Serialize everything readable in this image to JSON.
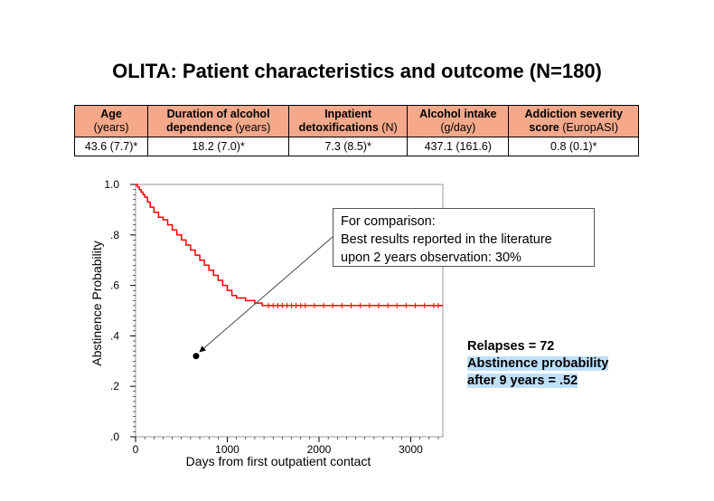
{
  "title": "OLITA: Patient characteristics and outcome (N=180)",
  "table": {
    "headers": [
      {
        "line1": "Age",
        "line2": "(years)",
        "line2_bold": ""
      },
      {
        "line1": "Duration of alcohol",
        "line2": " (years)",
        "line2_bold": "dependence"
      },
      {
        "line1": "Inpatient",
        "line2": " (N)",
        "line2_bold": "detoxifications"
      },
      {
        "line1": "Alcohol intake",
        "line2": "(g/day)",
        "line2_bold": ""
      },
      {
        "line1": "Addiction severity",
        "line2": " (EuropASI)",
        "line2_bold": "score"
      }
    ],
    "values": [
      "43.6 (7.7)*",
      "18.2 (7.0)*",
      "7.3 (8.5)*",
      "437.1 (161.6)",
      "0.8 (0.1)*"
    ]
  },
  "callout": {
    "line1": "For comparison:",
    "line2": "Best results reported in the literature",
    "line3": "upon 2 years observation: 30%"
  },
  "summary": {
    "line1": "Relapses = 72",
    "line2": "Abstinence probability",
    "line3": "after 9 years = .52"
  },
  "colors": {
    "curve": "#ff0000",
    "header_bg": "#f5a98a",
    "highlight": "#bfe0fb"
  },
  "chart_data": {
    "type": "line",
    "title": "",
    "xlabel": "Days from first outpatient contact",
    "ylabel": "Abstinence Probability",
    "xlim": [
      0,
      3350
    ],
    "ylim": [
      0,
      1.0
    ],
    "x_ticks": [
      0,
      1000,
      2000,
      3000
    ],
    "x_tick_labels": [
      "0",
      "1000",
      "2000",
      "3000"
    ],
    "y_ticks": [
      0,
      0.2,
      0.4,
      0.6,
      0.8,
      1.0
    ],
    "y_tick_labels": [
      ".0",
      ".2",
      ".4",
      ".6",
      ".8",
      "1.0"
    ],
    "grid": false,
    "series": [
      {
        "step": true,
        "points": [
          [
            0,
            1.0
          ],
          [
            20,
            0.99
          ],
          [
            40,
            0.98
          ],
          [
            60,
            0.97
          ],
          [
            80,
            0.96
          ],
          [
            100,
            0.95
          ],
          [
            130,
            0.93
          ],
          [
            160,
            0.91
          ],
          [
            200,
            0.89
          ],
          [
            250,
            0.87
          ],
          [
            300,
            0.86
          ],
          [
            350,
            0.84
          ],
          [
            400,
            0.82
          ],
          [
            450,
            0.8
          ],
          [
            500,
            0.78
          ],
          [
            550,
            0.76
          ],
          [
            600,
            0.74
          ],
          [
            650,
            0.72
          ],
          [
            700,
            0.7
          ],
          [
            750,
            0.68
          ],
          [
            800,
            0.66
          ],
          [
            850,
            0.64
          ],
          [
            900,
            0.62
          ],
          [
            950,
            0.6
          ],
          [
            1000,
            0.58
          ],
          [
            1050,
            0.56
          ],
          [
            1100,
            0.55
          ],
          [
            1200,
            0.54
          ],
          [
            1300,
            0.53
          ],
          [
            1380,
            0.52
          ],
          [
            3350,
            0.52
          ]
        ],
        "censored_x": [
          1450,
          1500,
          1550,
          1600,
          1650,
          1700,
          1750,
          1800,
          1850,
          1950,
          2050,
          2150,
          2250,
          2350,
          2450,
          2550,
          2650,
          2750,
          2850,
          2950,
          3050,
          3150,
          3250,
          3300
        ]
      }
    ],
    "reference_point": {
      "x": 660,
      "y": 0.32
    }
  }
}
